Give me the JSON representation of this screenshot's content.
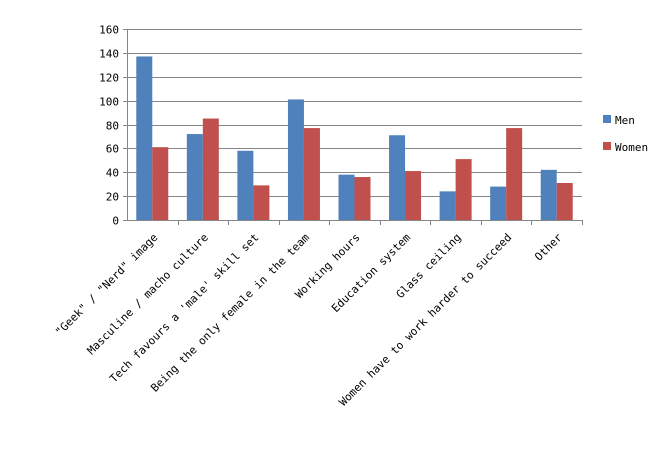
{
  "chart_data": {
    "type": "bar",
    "categories": [
      "\"Geek\" / \"Nerd\" image",
      "Masculine / macho culture",
      "Tech favours a 'male' skill set",
      "Being the only female in the team",
      "Working hours",
      "Education system",
      "Glass ceiling",
      "Women have to work harder to succeed",
      "Other"
    ],
    "series": [
      {
        "name": "Men",
        "color": "#4F81BD",
        "values": [
          137,
          72,
          58,
          101,
          38,
          71,
          24,
          28,
          42
        ]
      },
      {
        "name": "Women",
        "color": "#C0504D",
        "values": [
          61,
          85,
          29,
          77,
          36,
          41,
          51,
          77,
          31
        ]
      }
    ],
    "yticks": [
      "0",
      "20",
      "40",
      "60",
      "80",
      "100",
      "120",
      "140",
      "160"
    ],
    "ylim": [
      0,
      160
    ],
    "grid": true,
    "legend": "right",
    "title": "",
    "xlabel": "",
    "ylabel": ""
  }
}
